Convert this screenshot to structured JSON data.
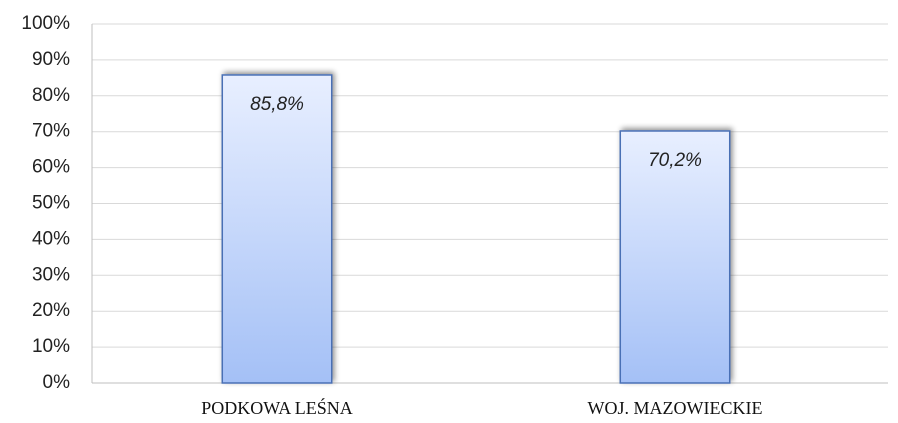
{
  "chart_data": {
    "type": "bar",
    "categories": [
      "PODKOWA LEŚNA",
      "WOJ. MAZOWIECKIE"
    ],
    "values": [
      85.8,
      70.2
    ],
    "value_labels": [
      "85,8%",
      "70,2%"
    ],
    "color": "#a4c0f6",
    "ylim": [
      0,
      100
    ],
    "yticks": [
      {
        "value": 0,
        "label": "0%"
      },
      {
        "value": 10,
        "label": "10%"
      },
      {
        "value": 20,
        "label": "20%"
      },
      {
        "value": 30,
        "label": "30%"
      },
      {
        "value": 40,
        "label": "40%"
      },
      {
        "value": 50,
        "label": "50%"
      },
      {
        "value": 60,
        "label": "60%"
      },
      {
        "value": 70,
        "label": "70%"
      },
      {
        "value": 80,
        "label": "80%"
      },
      {
        "value": 90,
        "label": "90%"
      },
      {
        "value": 100,
        "label": "100%"
      }
    ],
    "grid": true
  }
}
